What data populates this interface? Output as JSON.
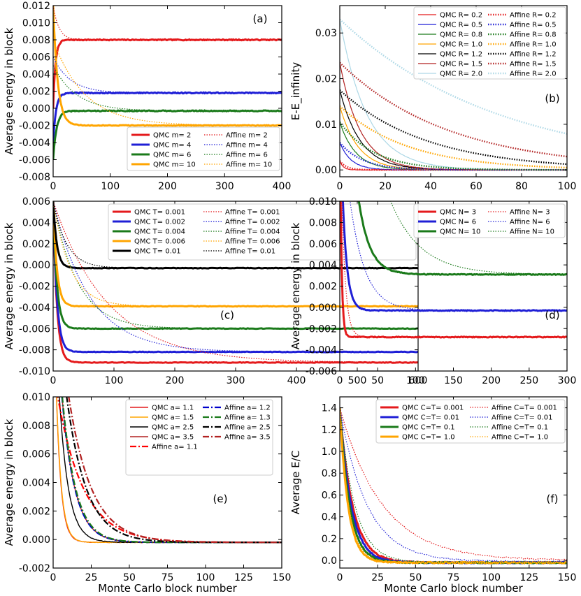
{
  "chart_data": [
    {
      "panel": "(a)",
      "type": "line",
      "xlabel": "",
      "ylabel": "Average energy in block",
      "xlim": [
        0,
        400
      ],
      "ylim": [
        -0.008,
        0.012
      ],
      "xticks": [
        "0",
        "100",
        "200",
        "300",
        "400"
      ],
      "yticks": [
        "-0.008",
        "-0.006",
        "-0.004",
        "-0.002",
        "0.000",
        "0.002",
        "0.004",
        "0.006",
        "0.008",
        "0.010",
        "0.012"
      ],
      "legend": "bottom-right",
      "legend_cols": 2,
      "series": [
        {
          "name": "QMC m= 2",
          "style": "solid",
          "width": 3,
          "color": "#e41a1c",
          "final": 0.008,
          "start": 0.0,
          "tau": 4,
          "noise": 6e-05
        },
        {
          "name": "QMC m= 4",
          "style": "solid",
          "width": 3,
          "color": "#1f1fd6",
          "final": 0.0018,
          "start": -0.004,
          "tau": 5,
          "noise": 6e-05
        },
        {
          "name": "QMC m= 6",
          "style": "solid",
          "width": 3,
          "color": "#1a7a1a",
          "final": -0.0003,
          "start": -0.006,
          "tau": 6,
          "noise": 6e-05
        },
        {
          "name": "QMC m= 10",
          "style": "solid",
          "width": 3,
          "color": "#ffa500",
          "final": -0.002,
          "start": 0.012,
          "tau": 8,
          "noise": 4e-05
        },
        {
          "name": "Affine m= 2",
          "style": "dotted",
          "width": 1.2,
          "color": "#e41a1c",
          "final": 0.008,
          "start": 0.012,
          "tau": 10,
          "noise": 0
        },
        {
          "name": "Affine m= 4",
          "style": "dotted",
          "width": 1.2,
          "color": "#1f1fd6",
          "final": 0.0018,
          "start": 0.006,
          "tau": 30,
          "noise": 0
        },
        {
          "name": "Affine m= 6",
          "style": "dotted",
          "width": 1.2,
          "color": "#1a7a1a",
          "final": -0.0003,
          "start": 0.005,
          "tau": 40,
          "noise": 0
        },
        {
          "name": "Affine m= 10",
          "style": "dotted",
          "width": 1.2,
          "color": "#ffa500",
          "final": -0.002,
          "start": 0.008,
          "tau": 55,
          "noise": 0
        }
      ],
      "annotation": "(a)"
    },
    {
      "panel": "(b)",
      "type": "line",
      "xlabel": "",
      "ylabel": "E-E_infinity",
      "xlim": [
        0,
        100
      ],
      "ylim": [
        -0.0015,
        0.036
      ],
      "xticks": [
        "0",
        "20",
        "40",
        "60",
        "80",
        "100"
      ],
      "yticks": [
        "0.00",
        "0.01",
        "0.02",
        "0.03"
      ],
      "legend": "top-right",
      "legend_cols": 2,
      "series": [
        {
          "name": "QMC R= 0.2",
          "style": "solid",
          "width": 1.2,
          "color": "#e41a1c",
          "final": 0.0,
          "start": 0.002,
          "tau": 1.5,
          "noise": 5e-05
        },
        {
          "name": "QMC R= 0.5",
          "style": "solid",
          "width": 1.2,
          "color": "#1f1fd6",
          "final": 0.0,
          "start": 0.006,
          "tau": 5,
          "noise": 5e-05
        },
        {
          "name": "QMC R= 0.8",
          "style": "solid",
          "width": 1.2,
          "color": "#1a7a1a",
          "final": 0.0,
          "start": 0.0105,
          "tau": 7,
          "noise": 5e-05
        },
        {
          "name": "QMC R= 1.0",
          "style": "solid",
          "width": 1.2,
          "color": "#ffa500",
          "final": 0.0,
          "start": 0.014,
          "tau": 8,
          "noise": 5e-05
        },
        {
          "name": "QMC R= 1.2",
          "style": "solid",
          "width": 1.2,
          "color": "#000000",
          "final": 0.0,
          "start": 0.0175,
          "tau": 9,
          "noise": 5e-05
        },
        {
          "name": "QMC R= 1.5",
          "style": "solid",
          "width": 1.2,
          "color": "#b22222",
          "final": 0.0,
          "start": 0.0235,
          "tau": 9,
          "noise": 5e-05
        },
        {
          "name": "QMC R= 2.0",
          "style": "solid",
          "width": 1.2,
          "color": "#add8e6",
          "final": 0.0,
          "start": 0.033,
          "tau": 12,
          "noise": 5e-05
        },
        {
          "name": "Affine R= 0.2",
          "style": "dotted",
          "width": 2.4,
          "color": "#e41a1c",
          "final": 0.0,
          "start": 0.002,
          "tau": 3,
          "noise": 0
        },
        {
          "name": "Affine R= 0.5",
          "style": "dotted",
          "width": 2.4,
          "color": "#1f1fd6",
          "final": 0.0,
          "start": 0.006,
          "tau": 10,
          "noise": 0
        },
        {
          "name": "Affine R= 0.8",
          "style": "dotted",
          "width": 2.4,
          "color": "#1a7a1a",
          "final": 0.0,
          "start": 0.0105,
          "tau": 15,
          "noise": 0
        },
        {
          "name": "Affine R= 1.0",
          "style": "dotted",
          "width": 2.4,
          "color": "#ffa500",
          "final": 0.0,
          "start": 0.014,
          "tau": 30,
          "noise": 0
        },
        {
          "name": "Affine R= 1.2",
          "style": "dotted",
          "width": 2.4,
          "color": "#000000",
          "final": 0.0,
          "start": 0.0175,
          "tau": 38,
          "noise": 0
        },
        {
          "name": "Affine R= 1.5",
          "style": "dotted",
          "width": 2.4,
          "color": "#b22222",
          "final": 0.0,
          "start": 0.0235,
          "tau": 48,
          "noise": 0
        },
        {
          "name": "Affine R= 2.0",
          "style": "dotted",
          "width": 2.4,
          "color": "#add8e6",
          "final": 0.0,
          "start": 0.033,
          "tau": 70,
          "noise": 0
        }
      ],
      "annotation": "(b)"
    },
    {
      "panel": "(c)",
      "type": "line",
      "xlabel": "",
      "ylabel": "Average energy in block",
      "xlim": [
        0,
        600
      ],
      "ylim": [
        -0.01,
        0.006
      ],
      "xticks": [
        "0",
        "100",
        "200",
        "300",
        "400",
        "500",
        "600"
      ],
      "yticks": [
        "-0.010",
        "-0.008",
        "-0.006",
        "-0.004",
        "-0.002",
        "0.000",
        "0.002",
        "0.004",
        "0.006"
      ],
      "legend": "top-right",
      "legend_cols": 2,
      "series": [
        {
          "name": "QMC T= 0.001",
          "style": "solid",
          "width": 3,
          "color": "#e41a1c",
          "final": -0.0092,
          "start": 0.006,
          "tau": 6,
          "noise": 3e-05
        },
        {
          "name": "QMC T= 0.002",
          "style": "solid",
          "width": 3,
          "color": "#1f1fd6",
          "final": -0.0082,
          "start": 0.006,
          "tau": 6,
          "noise": 3e-05
        },
        {
          "name": "QMC T= 0.004",
          "style": "solid",
          "width": 3,
          "color": "#1a7a1a",
          "final": -0.006,
          "start": 0.006,
          "tau": 6,
          "noise": 3e-05
        },
        {
          "name": "QMC T= 0.006",
          "style": "solid",
          "width": 3,
          "color": "#ffa500",
          "final": -0.0039,
          "start": 0.006,
          "tau": 6,
          "noise": 3e-05
        },
        {
          "name": "QMC T= 0.01",
          "style": "solid",
          "width": 3,
          "color": "#000000",
          "final": -0.0003,
          "start": 0.006,
          "tau": 6,
          "noise": 3e-05
        },
        {
          "name": "Affine T= 0.001",
          "style": "dotted",
          "width": 1.2,
          "color": "#e41a1c",
          "final": -0.0092,
          "start": 0.006,
          "tau": 90,
          "noise": 0
        },
        {
          "name": "Affine T= 0.002",
          "style": "dotted",
          "width": 1.2,
          "color": "#1f1fd6",
          "final": -0.0082,
          "start": 0.006,
          "tau": 60,
          "noise": 0
        },
        {
          "name": "Affine T= 0.004",
          "style": "dotted",
          "width": 1.2,
          "color": "#1a7a1a",
          "final": -0.006,
          "start": 0.006,
          "tau": 40,
          "noise": 0
        },
        {
          "name": "Affine T= 0.006",
          "style": "dotted",
          "width": 1.2,
          "color": "#ffa500",
          "final": -0.0039,
          "start": 0.006,
          "tau": 28,
          "noise": 0
        },
        {
          "name": "Affine T= 0.01",
          "style": "dotted",
          "width": 1.2,
          "color": "#000000",
          "final": -0.0003,
          "start": 0.006,
          "tau": 22,
          "noise": 0
        }
      ],
      "annotation": "(c)"
    },
    {
      "panel": "(d)",
      "type": "line",
      "xlabel": "",
      "ylabel": "Average energy in block",
      "xlim": [
        0,
        300
      ],
      "ylim": [
        -0.006,
        0.01
      ],
      "xticks": [
        "0",
        "50",
        "100",
        "150",
        "200",
        "250",
        "300"
      ],
      "yticks": [
        "-0.006",
        "-0.004",
        "-0.002",
        "0.000",
        "0.002",
        "0.004",
        "0.006",
        "0.008",
        "0.010"
      ],
      "legend": "top-right",
      "legend_cols": 2,
      "series": [
        {
          "name": "QMC N= 3",
          "style": "solid",
          "width": 3,
          "color": "#e41a1c",
          "final": -0.0028,
          "start": 0.02,
          "tau": 2,
          "noise": 4e-05
        },
        {
          "name": "QMC N= 6",
          "style": "solid",
          "width": 3,
          "color": "#1f1fd6",
          "final": -0.0003,
          "start": 0.02,
          "tau": 6,
          "noise": 4e-05
        },
        {
          "name": "QMC N= 10",
          "style": "solid",
          "width": 3,
          "color": "#1a7a1a",
          "final": 0.0031,
          "start": 0.04,
          "tau": 15,
          "noise": 4e-05
        },
        {
          "name": "Affine N= 3",
          "style": "dotted",
          "width": 1.2,
          "color": "#e41a1c",
          "final": -0.0028,
          "start": 0.02,
          "tau": 5,
          "noise": 0
        },
        {
          "name": "Affine N= 6",
          "style": "dotted",
          "width": 1.2,
          "color": "#1f1fd6",
          "final": -0.0003,
          "start": 0.02,
          "tau": 20,
          "noise": 0
        },
        {
          "name": "Affine N= 10",
          "style": "dotted",
          "width": 1.2,
          "color": "#1a7a1a",
          "final": 0.0031,
          "start": 0.04,
          "tau": 40,
          "noise": 0
        }
      ],
      "annotation": "(d)"
    },
    {
      "panel": "(e)",
      "type": "line",
      "xlabel": "Monte Carlo block number",
      "ylabel": "Average energy in block",
      "xlim": [
        0,
        150
      ],
      "ylim": [
        -0.002,
        0.01
      ],
      "xticks": [
        "0",
        "25",
        "50",
        "75",
        "100",
        "125",
        "150"
      ],
      "yticks": [
        "-0.002",
        "0.000",
        "0.002",
        "0.004",
        "0.006",
        "0.008",
        "0.010"
      ],
      "legend": "top-right",
      "legend_cols": 2,
      "series": [
        {
          "name": "QMC a= 1.1",
          "style": "solid",
          "width": 1.4,
          "color": "#e41a1c",
          "final": -0.0002,
          "start": 0.02,
          "tau": 3.2,
          "noise": 2e-05
        },
        {
          "name": "QMC a= 1.5",
          "style": "solid",
          "width": 1.4,
          "color": "#ffa500",
          "final": -0.0002,
          "start": 0.02,
          "tau": 3.3,
          "noise": 2e-05
        },
        {
          "name": "QMC a= 2.5",
          "style": "solid",
          "width": 1.4,
          "color": "#000000",
          "final": -0.0002,
          "start": 0.02,
          "tau": 6,
          "noise": 2e-05
        },
        {
          "name": "QMC a= 3.5",
          "style": "solid",
          "width": 1.4,
          "color": "#b22222",
          "final": -0.0002,
          "start": 0.02,
          "tau": 8.5,
          "noise": 2e-05
        },
        {
          "name": "Affine a= 1.1",
          "style": "dashdot",
          "width": 2.2,
          "color": "#ff0000",
          "final": -0.0002,
          "start": 0.012,
          "tau": 17,
          "noise": 0
        },
        {
          "name": "Affine a= 1.2",
          "style": "dashdot",
          "width": 2.2,
          "color": "#0000cc",
          "final": -0.0002,
          "start": 0.02,
          "tau": 8.5,
          "noise": 0
        },
        {
          "name": "Affine a= 1.3",
          "style": "dashdot",
          "width": 2.2,
          "color": "#1a7a1a",
          "final": -0.0002,
          "start": 0.02,
          "tau": 8.8,
          "noise": 0
        },
        {
          "name": "Affine a= 2.5",
          "style": "dashdot",
          "width": 2.2,
          "color": "#000000",
          "final": -0.0002,
          "start": 0.02,
          "tau": 13,
          "noise": 0
        },
        {
          "name": "Affine a= 3.5",
          "style": "dashdot",
          "width": 2.2,
          "color": "#b22222",
          "final": -0.0002,
          "start": 0.02,
          "tau": 15,
          "noise": 0
        }
      ],
      "annotation": "(e)"
    },
    {
      "panel": "(f)",
      "type": "line",
      "xlabel": "Monte Carlo block number",
      "ylabel": "Average E/C",
      "xlim": [
        0,
        150
      ],
      "ylim": [
        -0.07,
        1.5
      ],
      "xticks": [
        "0",
        "25",
        "50",
        "75",
        "100",
        "125",
        "150"
      ],
      "yticks": [
        "0.0",
        "0.2",
        "0.4",
        "0.6",
        "0.8",
        "1.0",
        "1.2",
        "1.4"
      ],
      "legend": "top-right",
      "legend_cols": 2,
      "series": [
        {
          "name": "QMC C=T= 0.001",
          "style": "solid",
          "width": 3,
          "color": "#e41a1c",
          "final": -0.02,
          "start": 1.4,
          "tau": 8.5,
          "noise": 0.006
        },
        {
          "name": "QMC C=T= 0.01",
          "style": "solid",
          "width": 3,
          "color": "#1f1fd6",
          "final": -0.02,
          "start": 1.4,
          "tau": 7.5,
          "noise": 0.006
        },
        {
          "name": "QMC C=T= 0.1",
          "style": "solid",
          "width": 3,
          "color": "#1a7a1a",
          "final": -0.02,
          "start": 1.4,
          "tau": 6.5,
          "noise": 0.006
        },
        {
          "name": "QMC C=T= 1.0",
          "style": "solid",
          "width": 3,
          "color": "#ffa500",
          "final": -0.02,
          "start": 1.4,
          "tau": 5.5,
          "noise": 0.006
        },
        {
          "name": "Affine C=T= 0.001",
          "style": "dotted",
          "width": 1.2,
          "color": "#e41a1c",
          "final": 0.0,
          "start": 1.4,
          "tau": 28,
          "noise": 0.006
        },
        {
          "name": "Affine C=T= 0.01",
          "style": "dotted",
          "width": 1.2,
          "color": "#1f1fd6",
          "final": -0.01,
          "start": 1.4,
          "tau": 18,
          "noise": 0.006
        },
        {
          "name": "Affine C=T= 0.1",
          "style": "dotted",
          "width": 1.2,
          "color": "#1a7a1a",
          "final": -0.02,
          "start": 1.4,
          "tau": 10,
          "noise": 0.006
        },
        {
          "name": "Affine C=T= 1.0",
          "style": "dotted",
          "width": 1.2,
          "color": "#ffa500",
          "final": -0.02,
          "start": 1.4,
          "tau": 6,
          "noise": 0.006
        }
      ],
      "annotation": "(f)"
    }
  ]
}
